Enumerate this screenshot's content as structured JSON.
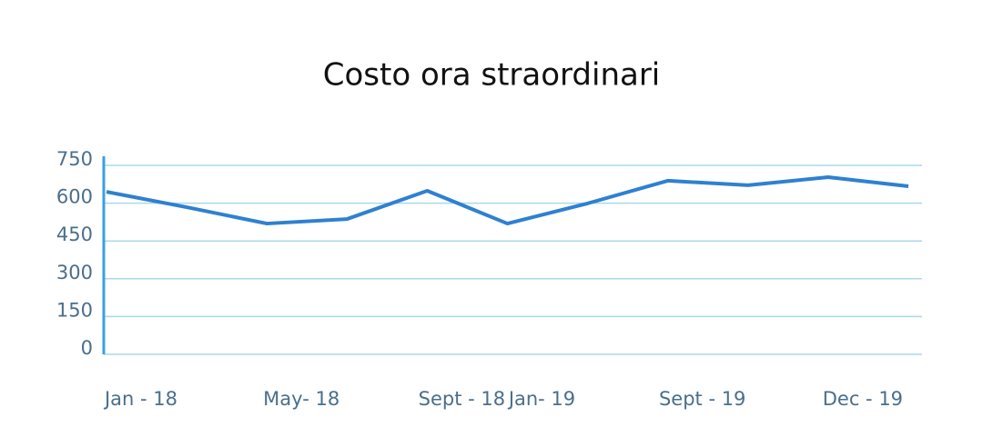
{
  "chart_data": {
    "type": "line",
    "title": "Costo ora straordinari",
    "categories": [
      "Jan - 18",
      null,
      "May- 18",
      null,
      "Sept - 18",
      "Jan- 19",
      null,
      "Sept - 19",
      null,
      "Dec - 19",
      null
    ],
    "series": [
      {
        "color": "#2f80d1",
        "values": [
          645,
          584,
          519,
          537,
          649,
          519,
          599,
          689,
          671,
          703,
          667
        ]
      }
    ],
    "ylim": [
      0,
      750
    ],
    "yticks": [
      0,
      150,
      300,
      450,
      600,
      750
    ],
    "grid": true
  }
}
